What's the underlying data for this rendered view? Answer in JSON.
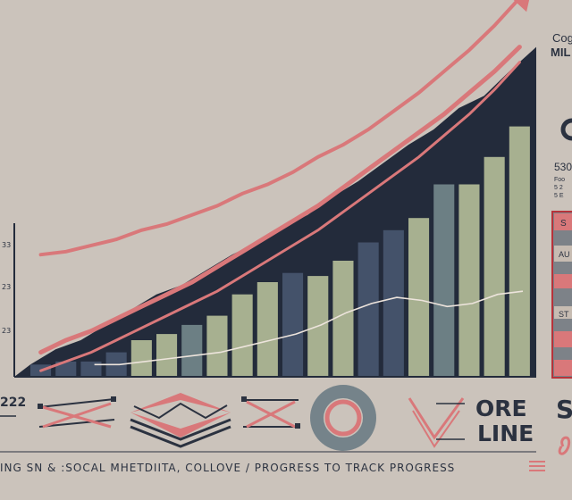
{
  "chart_data": {
    "type": "bar",
    "title": "",
    "xlabel": "",
    "ylabel": "",
    "ylim": [
      0,
      100
    ],
    "y_tick_labels": [
      "33",
      "23",
      "23"
    ],
    "values": [
      4,
      5,
      5,
      8,
      12,
      14,
      17,
      20,
      27,
      31,
      34,
      33,
      38,
      44,
      48,
      52,
      63,
      63,
      72,
      82
    ],
    "bar_colors": [
      "#44526a",
      "#44526a",
      "#44526a",
      "#44526a",
      "#a7b090",
      "#a7b090",
      "#6c7f84",
      "#a7b090",
      "#a7b090",
      "#a7b090",
      "#44526a",
      "#a7b090",
      "#a7b090",
      "#44526a",
      "#44526a",
      "#a7b090",
      "#6c7f84",
      "#a7b090",
      "#a7b090",
      "#a7b090"
    ],
    "area_values": [
      4,
      9,
      12,
      17,
      22,
      27,
      30,
      35,
      40,
      44,
      49,
      53,
      59,
      64,
      70,
      76,
      81,
      88,
      92,
      100
    ],
    "trend_lines": [
      {
        "values": [
          40,
          41,
          43,
          45,
          48,
          50,
          53,
          56,
          60,
          63,
          67,
          72,
          76,
          81,
          87,
          93,
          100,
          107,
          115,
          124
        ]
      },
      {
        "values": [
          8,
          12,
          15,
          19,
          23,
          27,
          31,
          36,
          41,
          46,
          51,
          56,
          62,
          68,
          74,
          80,
          86,
          93,
          100,
          108
        ]
      },
      {
        "values": [
          2,
          5,
          8,
          12,
          16,
          20,
          24,
          28,
          33,
          38,
          43,
          48,
          54,
          60,
          66,
          72,
          79,
          86,
          94,
          103
        ]
      }
    ],
    "wave_line": {
      "values": [
        4,
        4,
        5,
        6,
        7,
        8,
        10,
        12,
        14,
        17,
        21,
        24,
        26,
        25,
        23,
        24,
        27,
        28,
        24,
        15
      ]
    },
    "colors": {
      "trend": "#d9787a",
      "dark": "#232b3b",
      "wave": "#ede4dc"
    }
  },
  "bottom": {
    "left_number": "222",
    "big_label_line1": "ORE",
    "big_label_line2": "LINE",
    "right_label": "S",
    "caption": "ING SN & :SOCAL MHETDIITA, COLLOVE / PROGRESS TO TRACK PROGRESS"
  },
  "side_panel": {
    "heading_small": "Cog",
    "heading_bold": "MIL",
    "number_label": "530",
    "small_lines": [
      "Foo",
      "5 2",
      "5 E"
    ],
    "rows": [
      "S",
      "",
      "AU",
      "",
      "",
      "ST",
      "",
      ""
    ]
  }
}
